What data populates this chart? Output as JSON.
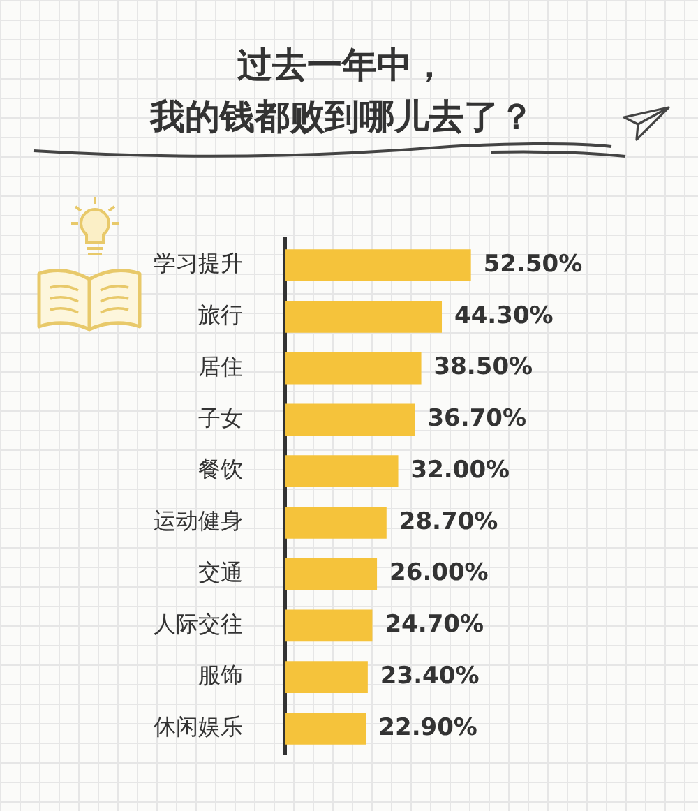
{
  "chart_data": {
    "type": "bar",
    "orientation": "horizontal",
    "title": "过去一年中，",
    "subtitle": "我的钱都败到哪儿去了？",
    "categories": [
      "学习提升",
      "旅行",
      "居住",
      "子女",
      "餐饮",
      "运动健身",
      "交通",
      "人际交往",
      "服饰",
      "休闲娱乐"
    ],
    "values": [
      52.5,
      44.3,
      38.5,
      36.7,
      32.0,
      28.7,
      26.0,
      24.7,
      23.4,
      22.9
    ],
    "value_labels": [
      "52.50%",
      "44.30%",
      "38.50%",
      "36.70%",
      "32.00%",
      "28.70%",
      "26.00%",
      "24.70%",
      "23.40%",
      "22.90%"
    ],
    "color": "#f5c33b",
    "legend": false
  }
}
